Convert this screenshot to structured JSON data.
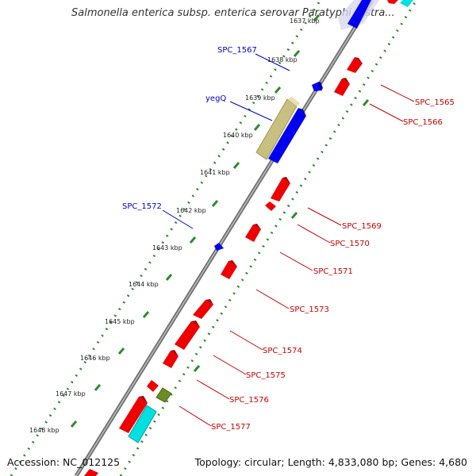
{
  "title": "Salmonella enterica subsp. enterica serovar Paratyphi C stra...",
  "footer": {
    "accession": "Accession: NC_012125",
    "summary": "Topology: circular; Length: 4,833,080 bp; Genes: 4,680"
  },
  "colors": {
    "backbone": "#888888",
    "tick_ring": "#2e8b2e",
    "forward_gene": "#0000ee",
    "reverse_gene": "#ee0000",
    "other_forward": "#c8c080",
    "other_reverse": "#00e0e0",
    "olive_feature": "#6b8e23",
    "forward_label": "#0000cc",
    "reverse_label": "#cc0000"
  },
  "kbp_ticks": [
    "1637 kbp",
    "1638 kbp",
    "1639 kbp",
    "1640 kbp",
    "1641 kbp",
    "1642 kbp",
    "1643 kbp",
    "1644 kbp",
    "1645 kbp",
    "1646 kbp",
    "1647 kbp",
    "1648 kbp"
  ],
  "forward_labels": [
    "SPC_1567",
    "yegQ",
    "SPC_1572"
  ],
  "reverse_labels": [
    "SPC_1565",
    "SPC_1566",
    "SPC_1569",
    "SPC_1570",
    "SPC_1571",
    "SPC_1573",
    "SPC_1574",
    "SPC_1575",
    "SPC_1576",
    "SPC_1577"
  ]
}
